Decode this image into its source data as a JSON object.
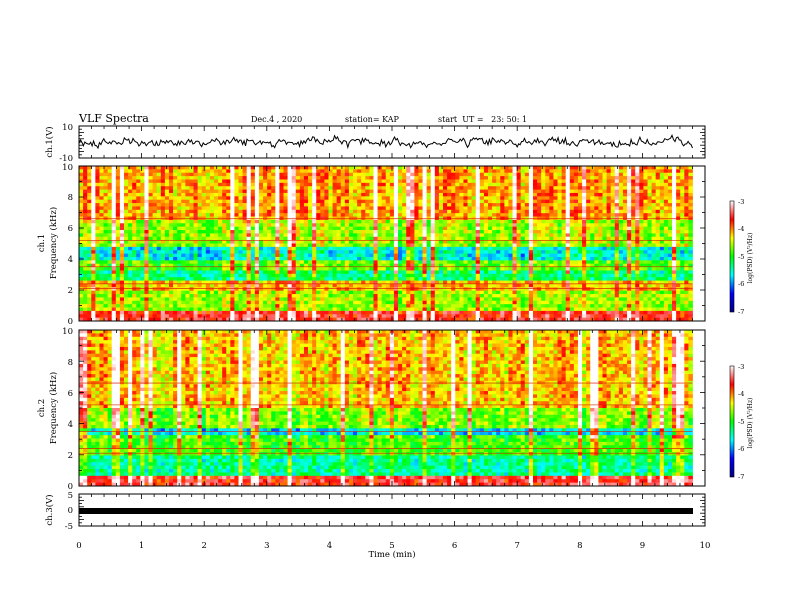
{
  "header": {
    "title": "VLF Spectra",
    "date": "Dec.4 , 2020",
    "station": "station= KAP",
    "start": "start  UT =   23: 50: 1"
  },
  "colors": {
    "waveform": "#000000",
    "colormap": [
      "#000080",
      "#0000ff",
      "#00ffff",
      "#00ff00",
      "#ffff00",
      "#ff0000",
      "#ffffff"
    ]
  },
  "chart_data": [
    {
      "type": "line",
      "id": "ch1_waveform",
      "ylabel": "ch.1(V)",
      "ylim": [
        -10,
        10
      ],
      "yticks": [
        "10",
        "-10"
      ],
      "xlim": [
        0,
        10
      ],
      "approx_level": 0,
      "approx_amplitude": 3
    },
    {
      "type": "heatmap",
      "id": "ch1_spectrogram",
      "ylabel": "ch.1\nFrequency (kHz)",
      "ylim": [
        0,
        10
      ],
      "yticks": [
        "0",
        "2",
        "4",
        "6",
        "8",
        "10"
      ],
      "xlim": [
        0,
        9.8
      ],
      "colorbar": {
        "label": "log(PSD) (V²/Hz)",
        "range": [
          -7,
          -3
        ],
        "ticks": [
          "-3",
          "-4",
          "-5",
          "-6",
          "-7"
        ]
      },
      "bands_khz": [
        {
          "range": [
            0,
            0.6
          ],
          "level": -3.6
        },
        {
          "range": [
            0.6,
            2.0
          ],
          "level": -4.6
        },
        {
          "range": [
            2.0,
            2.6
          ],
          "level": -4.2
        },
        {
          "range": [
            2.6,
            3.2
          ],
          "level": -5.3
        },
        {
          "range": [
            3.2,
            3.9
          ],
          "level": -4.8
        },
        {
          "range": [
            3.9,
            4.8
          ],
          "level": -5.6
        },
        {
          "range": [
            4.8,
            6.5
          ],
          "level": -4.6
        },
        {
          "range": [
            6.5,
            10
          ],
          "level": -4.1
        }
      ]
    },
    {
      "type": "heatmap",
      "id": "ch2_spectrogram",
      "ylabel": "ch.2\nFrequency (kHz)",
      "ylim": [
        0,
        10
      ],
      "yticks": [
        "0",
        "2",
        "4",
        "6",
        "8",
        "10"
      ],
      "xlim": [
        0,
        9.8
      ],
      "colorbar": {
        "label": "log(PSD) (V²/Hz)",
        "range": [
          -7,
          -3
        ],
        "ticks": [
          "-3",
          "-4",
          "-5",
          "-6",
          "-7"
        ]
      },
      "bands_khz": [
        {
          "range": [
            0,
            0.6
          ],
          "level": -3.6
        },
        {
          "range": [
            0.6,
            2.0
          ],
          "level": -5.4
        },
        {
          "range": [
            2.0,
            3.2
          ],
          "level": -4.9
        },
        {
          "range": [
            3.2,
            3.6
          ],
          "level": -5.7
        },
        {
          "range": [
            3.6,
            5.0
          ],
          "level": -4.7
        },
        {
          "range": [
            5.0,
            10
          ],
          "level": -4.2
        }
      ]
    },
    {
      "type": "line",
      "id": "ch3_waveform",
      "ylabel": "ch.3(V)",
      "ylim": [
        -5,
        5
      ],
      "yticks": [
        "5",
        "0",
        "-5"
      ],
      "xlim": [
        0,
        10
      ],
      "approx_level": 0,
      "approx_amplitude": 0.3
    }
  ],
  "xaxis": {
    "label": "Time (min)",
    "ticks": [
      "0",
      "1",
      "2",
      "3",
      "4",
      "5",
      "6",
      "7",
      "8",
      "9",
      "10"
    ]
  }
}
